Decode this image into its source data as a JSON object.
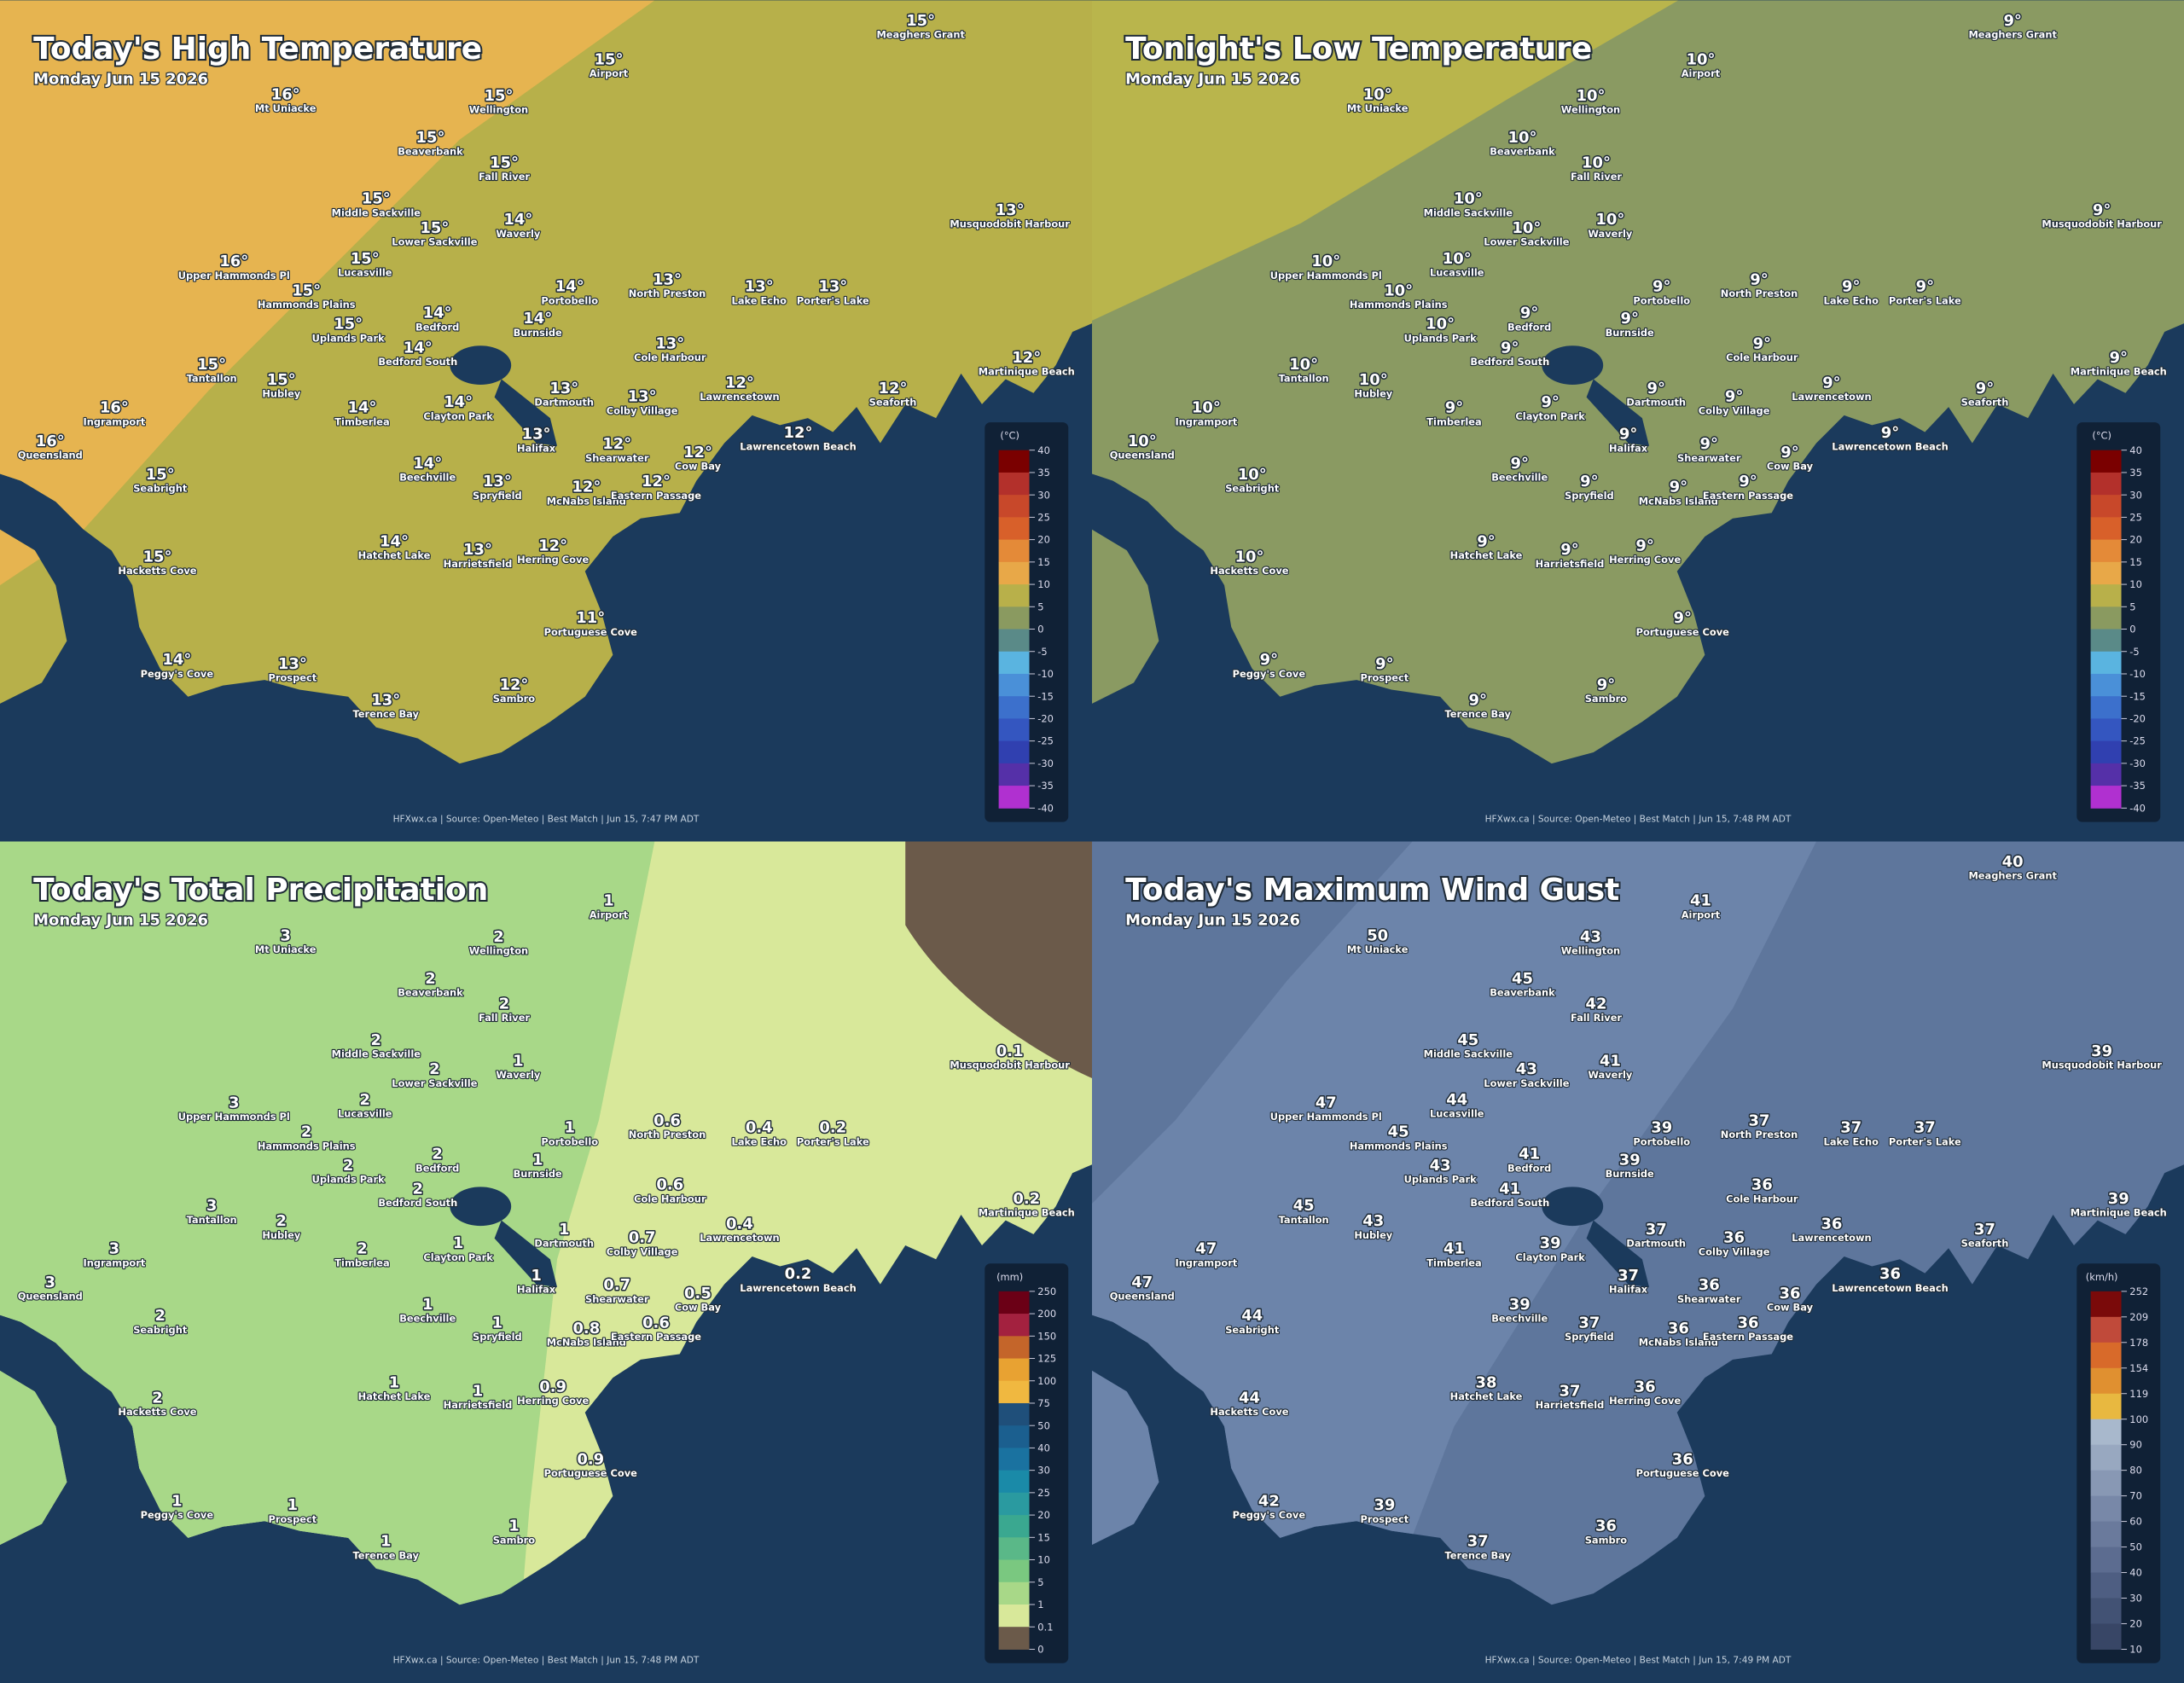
{
  "places": [
    "Meaghers Grant",
    "Airport",
    "Mt Uniacke",
    "Wellington",
    "Beaverbank",
    "Fall River",
    "Middle Sackville",
    "Waverly",
    "Lower Sackville",
    "Musquodobit Harbour",
    "Upper Hammonds Pl",
    "Lucasville",
    "Hammonds Plains",
    "Portobello",
    "North Preston",
    "Lake Echo",
    "Porter's Lake",
    "Bedford",
    "Burnside",
    "Uplands Park",
    "Bedford South",
    "Cole Harbour",
    "Martinique Beach",
    "Tantallon",
    "Hubley",
    "Lawrencetown",
    "Dartmouth",
    "Colby Village",
    "Seaforth",
    "Ingramport",
    "Timberlea",
    "Clayton Park",
    "Queensland",
    "Halifax",
    "Lawrencetown Beach",
    "Shearwater",
    "Cow Bay",
    "Seabright",
    "Beechville",
    "McNabs Island",
    "Spryfield",
    "Eastern Passage",
    "Hatchet Lake",
    "Harrietsfield",
    "Herring Cove",
    "Hacketts Cove",
    "Portuguese Cove",
    "Peggy's Cove",
    "Prospect",
    "Sambro",
    "Terence Bay"
  ],
  "panels": [
    {
      "title": "Today's High Temperature",
      "subtitle": "Monday Jun 15 2026",
      "values": [
        15,
        15,
        16,
        15,
        15,
        15,
        15,
        14,
        15,
        13,
        16,
        15,
        15,
        14,
        13,
        13,
        13,
        14,
        14,
        15,
        14,
        13,
        12,
        15,
        15,
        12,
        13,
        13,
        12,
        16,
        14,
        14,
        16,
        13,
        12,
        12,
        12,
        15,
        14,
        12,
        13,
        12,
        14,
        13,
        12,
        15,
        11,
        14,
        13,
        12,
        13
      ],
      "value_labels": [
        "15°",
        "15°",
        "16°",
        "15°",
        "15°",
        "15°",
        "15°",
        "14°",
        "15°",
        "13°",
        "16°",
        "15°",
        "15°",
        "14°",
        "13°",
        "13°",
        "13°",
        "14°",
        "14°",
        "15°",
        "14°",
        "13°",
        "12°",
        "15°",
        "15°",
        "12°",
        "13°",
        "13°",
        "12°",
        "16°",
        "14°",
        "14°",
        "16°",
        "13°",
        "12°",
        "12°",
        "12°",
        "15°",
        "14°",
        "12°",
        "13°",
        "12°",
        "14°",
        "13°",
        "12°",
        "15°",
        "11°",
        "14°",
        "13°",
        "12°",
        "13°"
      ],
      "legend": {
        "title": "(°C)",
        "ticks": [
          40,
          35,
          30,
          25,
          20,
          15,
          10,
          5,
          0,
          -5,
          -10,
          -15,
          -20,
          -25,
          -30,
          -35,
          -40
        ],
        "colors": [
          "#7a0000",
          "#b3302b",
          "#c8482a",
          "#d8602a",
          "#e48a38",
          "#e8a848",
          "#b8b04a",
          "#8a9a60",
          "#5a8a88",
          "#5ab4e0",
          "#4a90d8",
          "#3c70cc",
          "#3456c0",
          "#3040b0",
          "#5530a8",
          "#b030d0"
        ]
      },
      "credit": "HFXwx.ca | Source: Open-Meteo | Best Match | Jun 15, 7:47 PM ADT"
    },
    {
      "title": "Tonight's Low Temperature",
      "subtitle": "Monday Jun 15 2026",
      "values": [
        9,
        10,
        10,
        10,
        10,
        10,
        10,
        10,
        10,
        9,
        10,
        10,
        10,
        9,
        9,
        9,
        9,
        9,
        9,
        10,
        9,
        9,
        9,
        10,
        10,
        9,
        9,
        9,
        9,
        10,
        9,
        9,
        10,
        9,
        9,
        9,
        9,
        10,
        9,
        9,
        9,
        9,
        9,
        9,
        9,
        10,
        9,
        9,
        9,
        9,
        9
      ],
      "value_labels": [
        "9°",
        "10°",
        "10°",
        "10°",
        "10°",
        "10°",
        "10°",
        "10°",
        "10°",
        "9°",
        "10°",
        "10°",
        "10°",
        "9°",
        "9°",
        "9°",
        "9°",
        "9°",
        "9°",
        "10°",
        "9°",
        "9°",
        "9°",
        "10°",
        "10°",
        "9°",
        "9°",
        "9°",
        "9°",
        "10°",
        "9°",
        "9°",
        "10°",
        "9°",
        "9°",
        "9°",
        "9°",
        "10°",
        "9°",
        "9°",
        "9°",
        "9°",
        "9°",
        "9°",
        "9°",
        "10°",
        "9°",
        "9°",
        "9°",
        "9°",
        "9°"
      ],
      "legend": {
        "title": "(°C)",
        "ticks": [
          40,
          35,
          30,
          25,
          20,
          15,
          10,
          5,
          0,
          -5,
          -10,
          -15,
          -20,
          -25,
          -30,
          -35,
          -40
        ],
        "colors": [
          "#7a0000",
          "#b3302b",
          "#c8482a",
          "#d8602a",
          "#e48a38",
          "#e8a848",
          "#b8b04a",
          "#8a9a60",
          "#5a8a88",
          "#5ab4e0",
          "#4a90d8",
          "#3c70cc",
          "#3456c0",
          "#3040b0",
          "#5530a8",
          "#b030d0"
        ]
      },
      "credit": "HFXwx.ca | Source: Open-Meteo | Best Match | Jun 15, 7:48 PM ADT"
    },
    {
      "title": "Today's Total Precipitation",
      "subtitle": "Monday Jun 15 2026",
      "values": [
        null,
        1,
        3,
        2,
        2,
        2,
        2,
        1,
        2,
        0.1,
        3,
        2,
        2,
        1,
        0.6,
        0.4,
        0.2,
        2,
        1,
        2,
        2,
        0.6,
        0.2,
        3,
        2,
        0.4,
        1,
        0.7,
        null,
        3,
        2,
        1,
        3,
        1,
        0.2,
        0.7,
        0.5,
        2,
        1,
        0.8,
        1,
        0.6,
        1,
        1,
        0.9,
        2,
        0.9,
        1,
        1,
        1,
        1
      ],
      "legend": {
        "title": "(mm)",
        "ticks": [
          250,
          200,
          150,
          125,
          100,
          75,
          50,
          40,
          30,
          25,
          20,
          15,
          10,
          5,
          1,
          0.1,
          0
        ],
        "colors": [
          "#6b0016",
          "#a3213f",
          "#c4652a",
          "#e8a232",
          "#f0b840",
          "#1f4f7a",
          "#1b5f8f",
          "#1a72a0",
          "#1a8aa8",
          "#2a9aa0",
          "#3aa890",
          "#5ab888",
          "#7ac880",
          "#a8d888",
          "#d8e89a",
          "#6b5a4a"
        ]
      },
      "credit": "HFXwx.ca | Source: Open-Meteo | Best Match | Jun 15, 7:48 PM ADT"
    },
    {
      "title": "Today's Maximum Wind Gust",
      "subtitle": "Monday Jun 15 2026",
      "values": [
        40,
        41,
        50,
        43,
        45,
        42,
        45,
        41,
        43,
        39,
        47,
        44,
        45,
        39,
        37,
        37,
        37,
        41,
        39,
        43,
        41,
        36,
        39,
        45,
        43,
        36,
        37,
        36,
        37,
        47,
        41,
        39,
        47,
        37,
        36,
        36,
        36,
        44,
        39,
        36,
        37,
        36,
        38,
        37,
        36,
        44,
        36,
        42,
        39,
        36,
        37
      ],
      "legend": {
        "title": "(km/h)",
        "ticks": [
          252,
          209,
          178,
          154,
          119,
          100,
          90,
          80,
          70,
          60,
          50,
          40,
          30,
          20,
          10
        ],
        "colors": [
          "#7a0a0a",
          "#c04a3a",
          "#d86a2a",
          "#e09030",
          "#e8b840",
          "#a8b8cc",
          "#98a8c0",
          "#8898b4",
          "#7888a8",
          "#6a7a9c",
          "#5c6c90",
          "#4e5e82",
          "#425274",
          "#384666"
        ]
      },
      "credit": "HFXwx.ca | Source: Open-Meteo | Best Match | Jun 15, 7:49 PM ADT"
    }
  ]
}
